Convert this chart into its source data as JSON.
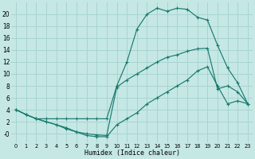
{
  "xlabel": "Humidex (Indice chaleur)",
  "bg_color": "#c5e8e5",
  "grid_color": "#a8d4d0",
  "line_color": "#1a7a6e",
  "xlim": [
    -0.5,
    23.5
  ],
  "ylim": [
    -1.5,
    22.0
  ],
  "xticks": [
    0,
    1,
    2,
    3,
    4,
    5,
    6,
    7,
    8,
    9,
    10,
    11,
    12,
    13,
    14,
    15,
    16,
    17,
    18,
    19,
    20,
    21,
    22,
    23
  ],
  "yticks": [
    0,
    2,
    4,
    6,
    8,
    10,
    12,
    14,
    16,
    18,
    20
  ],
  "ytick_labels": [
    "-0",
    "2",
    "4",
    "6",
    "8",
    "10",
    "12",
    "14",
    "16",
    "18",
    "20"
  ],
  "curve1_x": [
    0,
    1,
    2,
    3,
    4,
    5,
    6,
    7,
    8,
    9,
    10,
    11,
    12,
    13,
    14,
    15,
    16,
    17,
    18,
    19,
    20,
    21,
    22,
    23
  ],
  "curve1_y": [
    4.0,
    3.2,
    2.5,
    2.5,
    2.5,
    2.5,
    2.5,
    2.5,
    2.5,
    2.5,
    8.0,
    12.0,
    17.5,
    20.0,
    21.0,
    20.5,
    21.0,
    20.8,
    19.5,
    19.0,
    14.8,
    11.0,
    8.5,
    5.0
  ],
  "curve2_x": [
    0,
    1,
    2,
    3,
    4,
    5,
    6,
    7,
    8,
    9,
    10,
    11,
    12,
    13,
    14,
    15,
    16,
    17,
    18,
    19,
    20,
    21,
    22,
    23
  ],
  "curve2_y": [
    4.0,
    3.2,
    2.5,
    2.0,
    1.5,
    0.8,
    0.3,
    -0.3,
    -0.5,
    -0.5,
    1.5,
    2.5,
    3.5,
    5.0,
    6.0,
    7.0,
    8.0,
    9.0,
    10.5,
    11.2,
    8.0,
    5.0,
    5.5,
    5.0
  ],
  "curve3_x": [
    0,
    1,
    2,
    3,
    4,
    5,
    6,
    7,
    8,
    9,
    10,
    11,
    12,
    13,
    14,
    15,
    16,
    17,
    18,
    19,
    20,
    21,
    22,
    23
  ],
  "curve3_y": [
    4.0,
    3.2,
    2.5,
    2.0,
    1.5,
    1.0,
    0.3,
    0.0,
    -0.2,
    -0.3,
    7.8,
    9.0,
    10.0,
    11.0,
    12.0,
    12.8,
    13.2,
    13.8,
    14.2,
    14.3,
    7.5,
    8.0,
    7.0,
    5.0
  ]
}
